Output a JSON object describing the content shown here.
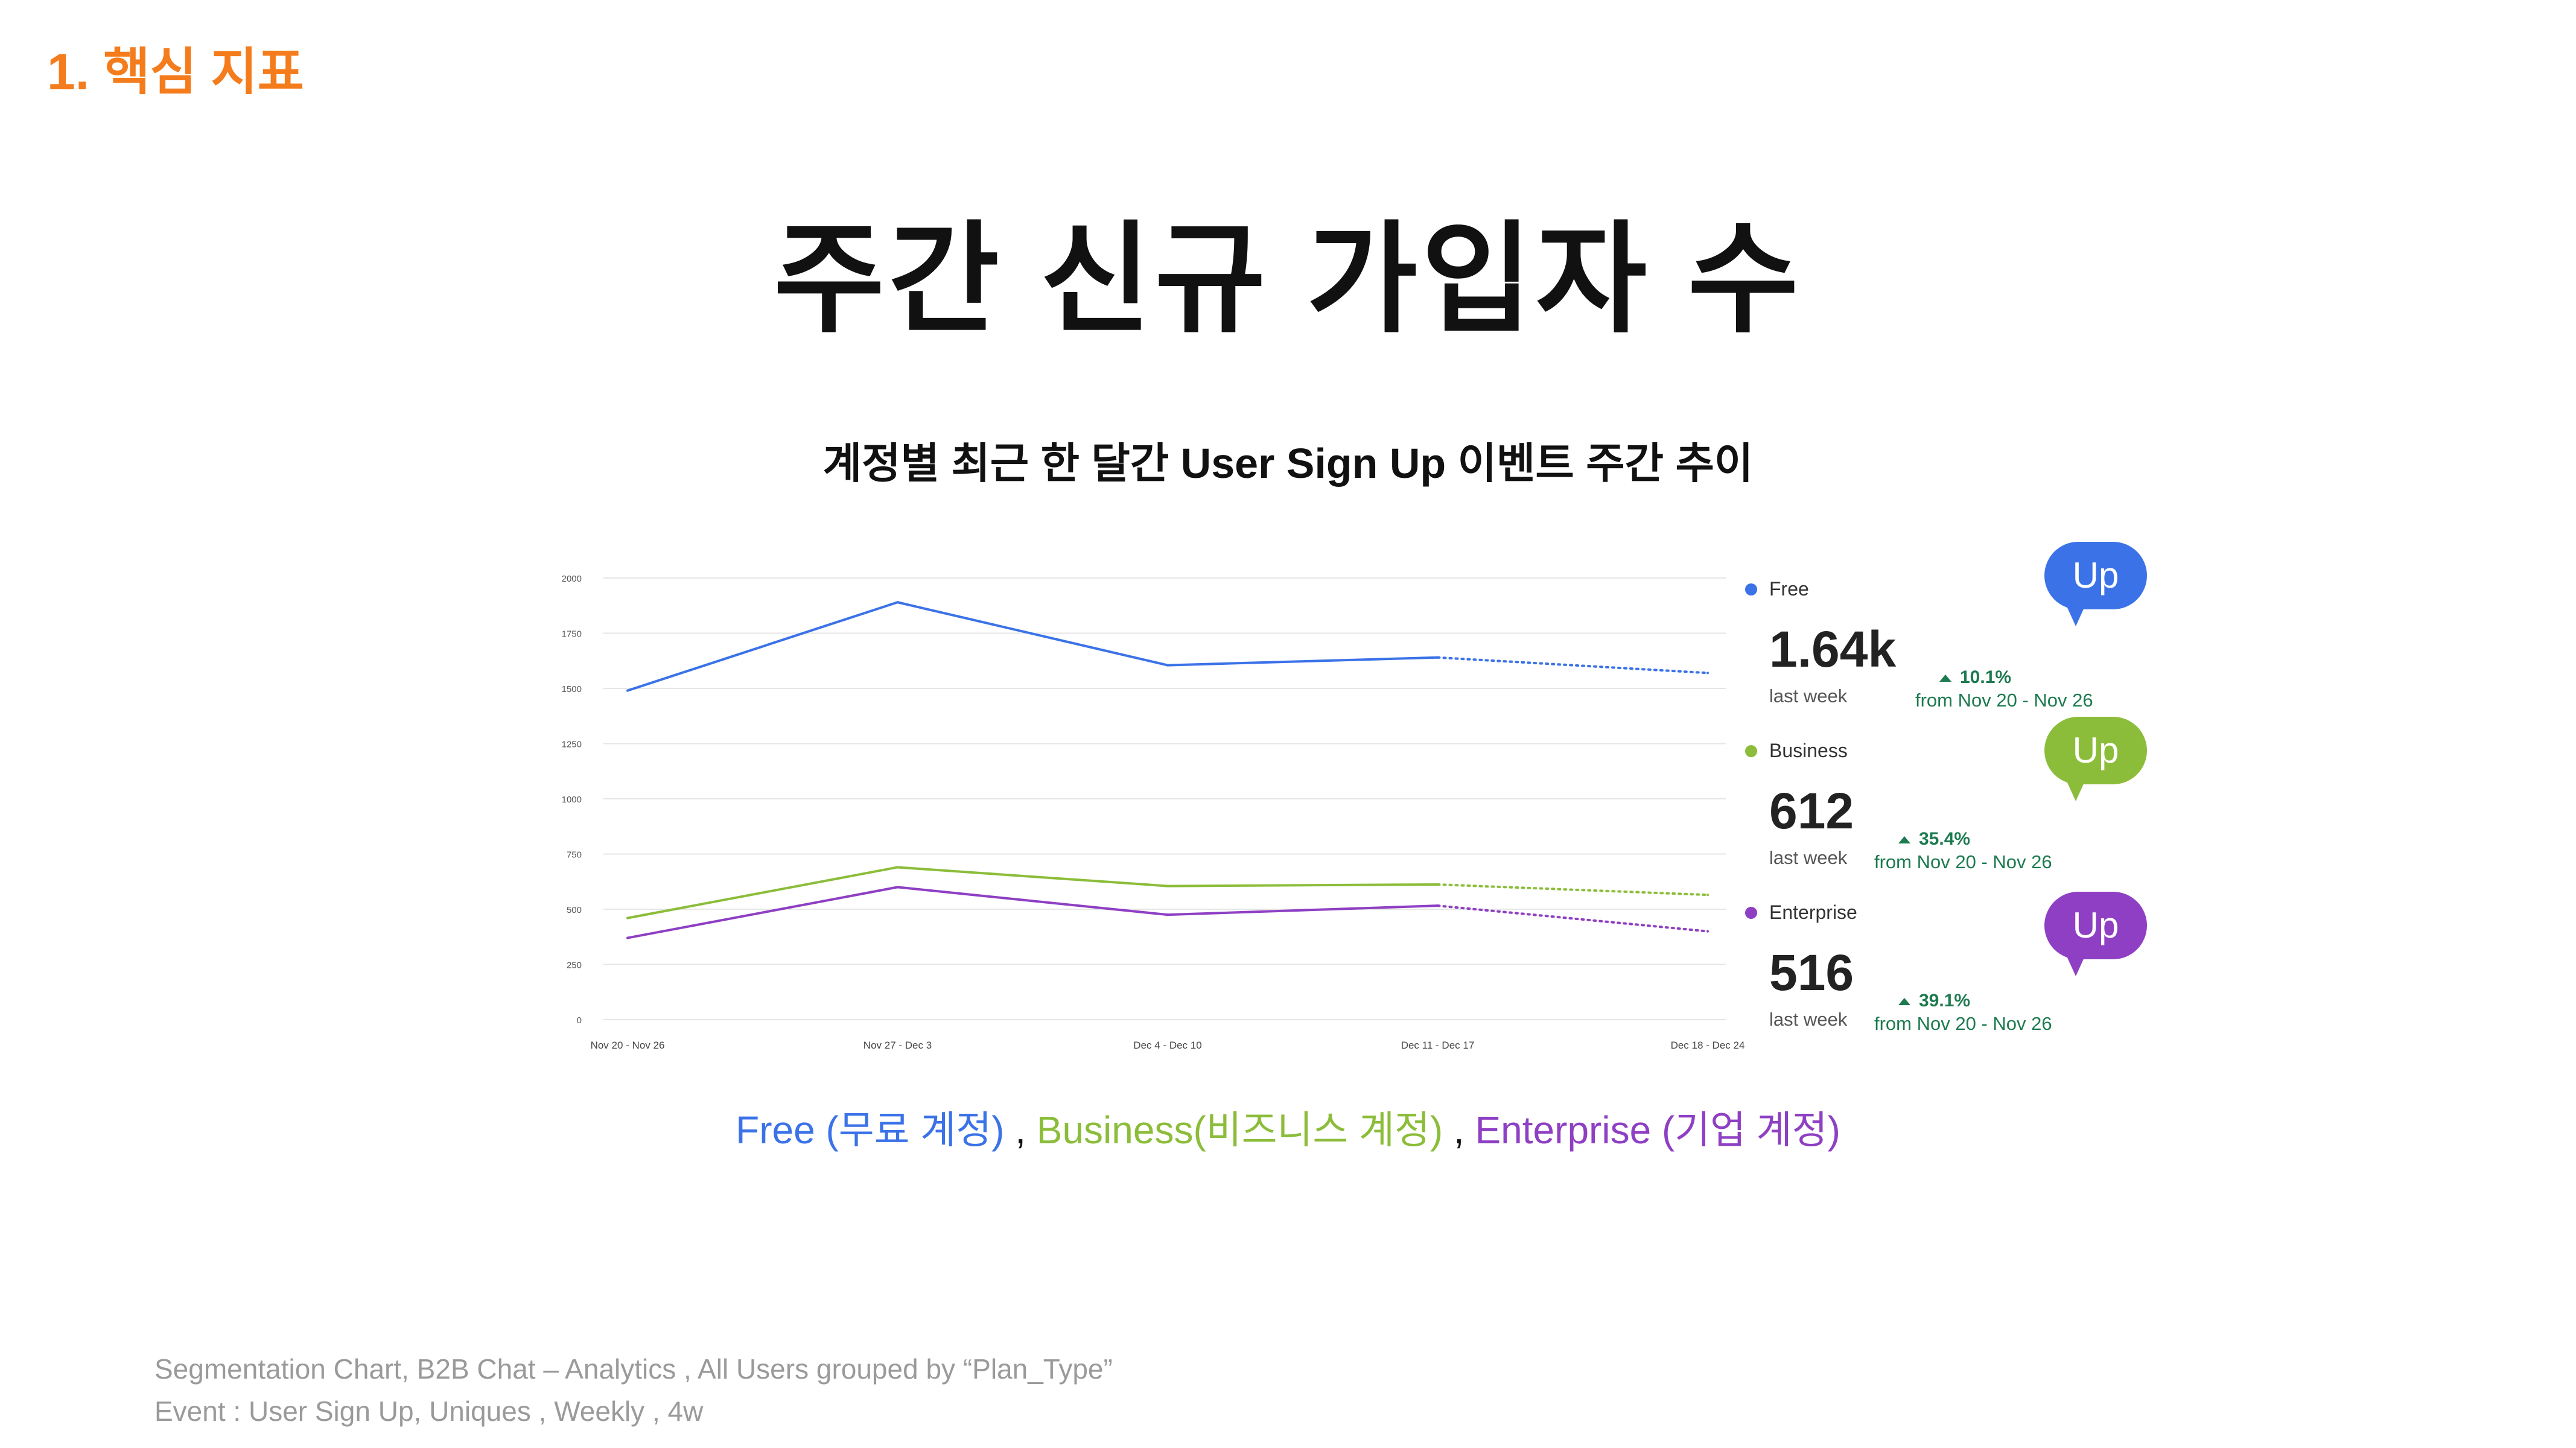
{
  "section_label": "1. 핵심 지표",
  "page_title": "주간 신규 가입자 수",
  "chart_title": "계정별 최근 한 달간 User Sign Up 이벤트 주간 추이",
  "legend": [
    {
      "name": "Free",
      "value": "1.64k",
      "sub": "last week",
      "change": "10.1%",
      "range": "from Nov 20 - Nov 26",
      "badge": "Up",
      "color": "#3b72e8"
    },
    {
      "name": "Business",
      "value": "612",
      "sub": "last week",
      "change": "35.4%",
      "range": "from Nov 20 - Nov 26",
      "badge": "Up",
      "color": "#8cbd3a"
    },
    {
      "name": "Enterprise",
      "value": "516",
      "sub": "last week",
      "change": "39.1%",
      "range": "from Nov 20 - Nov 26",
      "badge": "Up",
      "color": "#8e3fc3"
    }
  ],
  "caption": {
    "free": "Free (무료 계정)",
    "sep1": " , ",
    "business": "Business(비즈니스 계정)",
    "sep2": " , ",
    "enterprise": "Enterprise (기업 계정)"
  },
  "footnote": {
    "line1": "Segmentation Chart, B2B Chat – Analytics , All Users grouped by “Plan_Type”",
    "line2": "Event : User Sign Up, Uniques , Weekly , 4w"
  },
  "chart_data": {
    "type": "line",
    "categories": [
      "Nov 20 - Nov 26",
      "Nov 27 - Dec 3",
      "Dec 4 - Dec 10",
      "Dec 11 - Dec 17",
      "Dec 18 - Dec 24"
    ],
    "ylim": [
      0,
      2000
    ],
    "yticks": [
      0,
      250,
      500,
      750,
      1000,
      1250,
      1500,
      1750,
      2000
    ],
    "grid": true,
    "series": [
      {
        "name": "Free",
        "color": "#3b72e8",
        "values": [
          1490,
          1890,
          1605,
          1640,
          1570
        ],
        "partial_last": true
      },
      {
        "name": "Business",
        "color": "#8cbd3a",
        "values": [
          460,
          690,
          605,
          612,
          565
        ],
        "partial_last": true
      },
      {
        "name": "Enterprise",
        "color": "#8e3fc3",
        "values": [
          370,
          600,
          475,
          516,
          400
        ],
        "partial_last": true
      }
    ]
  }
}
